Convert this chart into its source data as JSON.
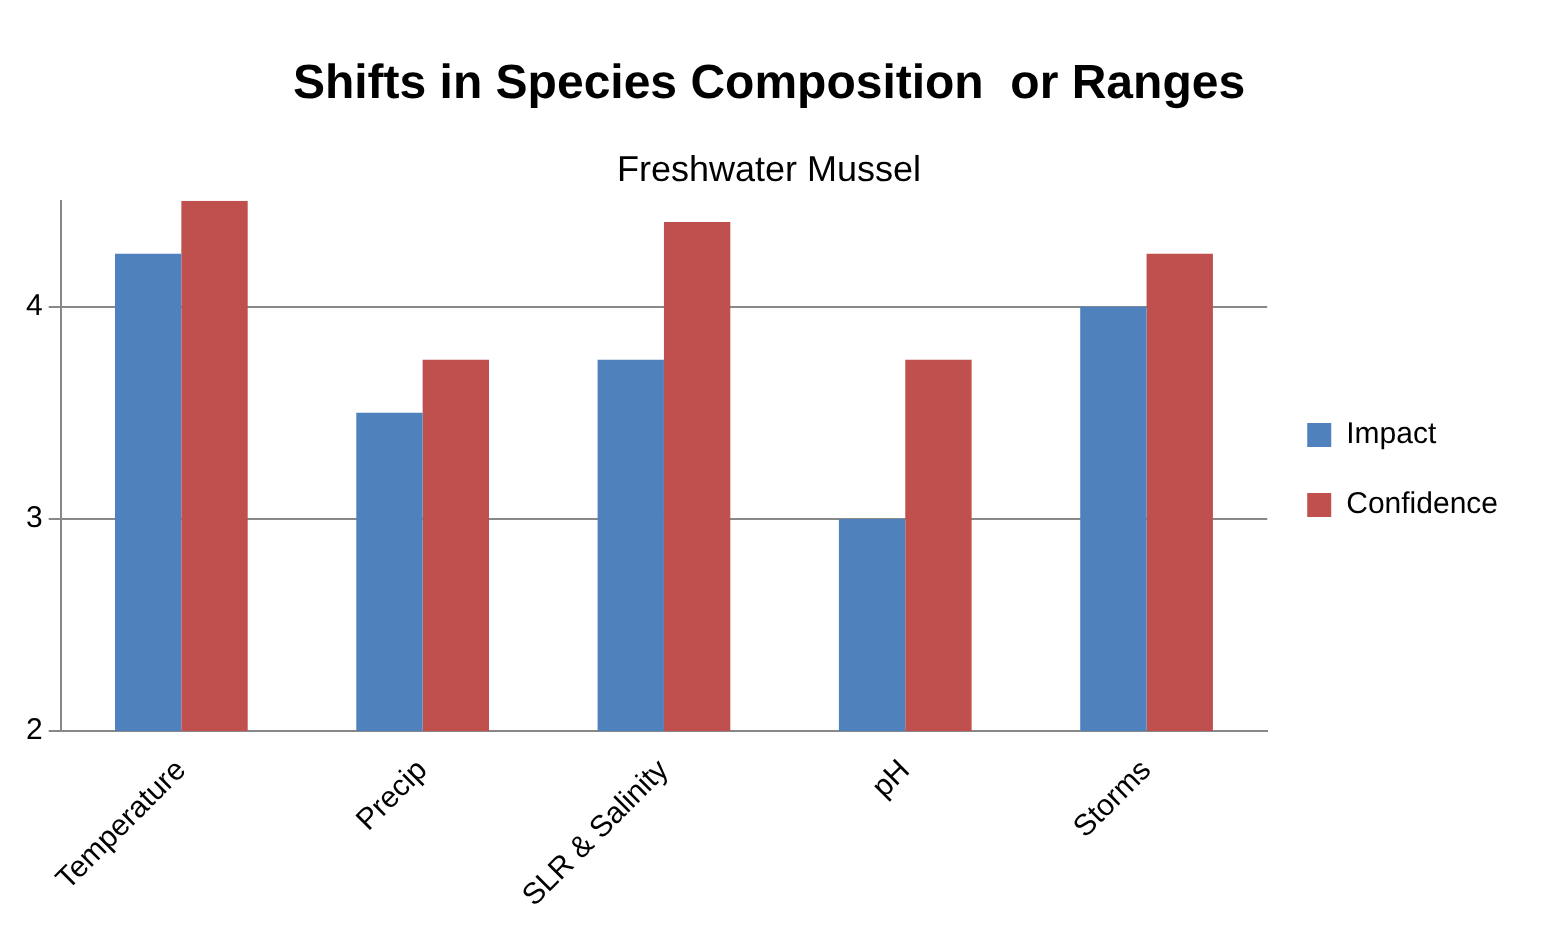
{
  "chart_data": {
    "type": "bar",
    "title": "Shifts in Species Composition  or Ranges",
    "subtitle": "Freshwater Mussel",
    "categories": [
      "Temperature",
      "Precip",
      "SLR & Salinity",
      "pH",
      "Storms"
    ],
    "series": [
      {
        "name": "Impact",
        "color": "#4f81bd",
        "values": [
          4.25,
          3.5,
          3.75,
          3,
          4
        ]
      },
      {
        "name": "Confidence",
        "color": "#c0504d",
        "values": [
          4.5,
          3.75,
          4.4,
          3.75,
          4.25
        ]
      }
    ],
    "ylim": [
      2,
      4.5
    ],
    "yticks": [
      2,
      3,
      4
    ],
    "grid": "y",
    "legend": "right"
  }
}
